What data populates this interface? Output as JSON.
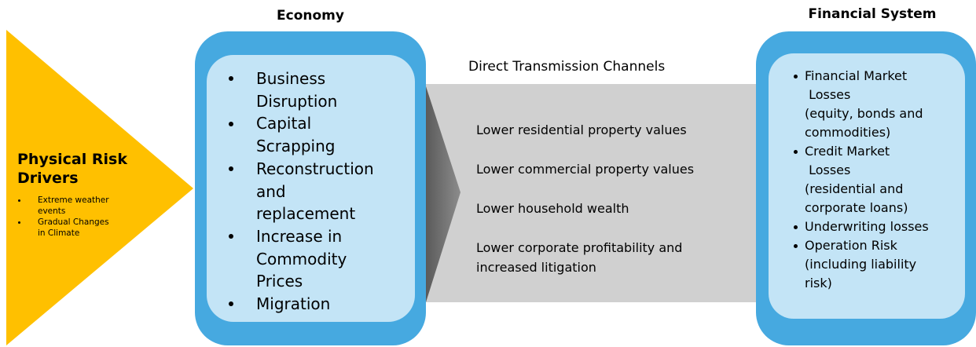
{
  "drivers": {
    "title": "Physical Risk Drivers",
    "items": [
      {
        "lines": [
          "Extreme weather",
          "events"
        ]
      },
      {
        "lines": [
          "Gradual Changes",
          "in Climate"
        ]
      }
    ]
  },
  "economy": {
    "title": "Economy",
    "items": [
      {
        "lines": [
          "Business",
          "Disruption"
        ]
      },
      {
        "lines": [
          "Capital",
          "Scrapping"
        ]
      },
      {
        "lines": [
          "Reconstruction",
          "and",
          "replacement"
        ]
      },
      {
        "lines": [
          "Increase in",
          "Commodity",
          "Prices"
        ]
      },
      {
        "lines": [
          "Migration"
        ]
      }
    ]
  },
  "channels": {
    "title": "Direct Transmission Channels",
    "items": [
      {
        "lines": [
          "Lower residential property values"
        ]
      },
      {
        "lines": [
          "Lower commercial property values"
        ]
      },
      {
        "lines": [
          "Lower household wealth"
        ]
      },
      {
        "lines": [
          "Lower corporate profitability and",
          "increased litigation"
        ]
      }
    ]
  },
  "financial": {
    "title": "Financial System",
    "items": [
      {
        "lines": [
          "Financial Market",
          " Losses",
          "(equity, bonds and",
          "commodities)"
        ]
      },
      {
        "lines": [
          "Credit Market",
          " Losses",
          "(residential and",
          "corporate loans)"
        ]
      },
      {
        "lines": [
          "Underwriting losses"
        ]
      },
      {
        "lines": [
          "Operation Risk",
          "(including liability",
          "risk)"
        ]
      }
    ]
  }
}
